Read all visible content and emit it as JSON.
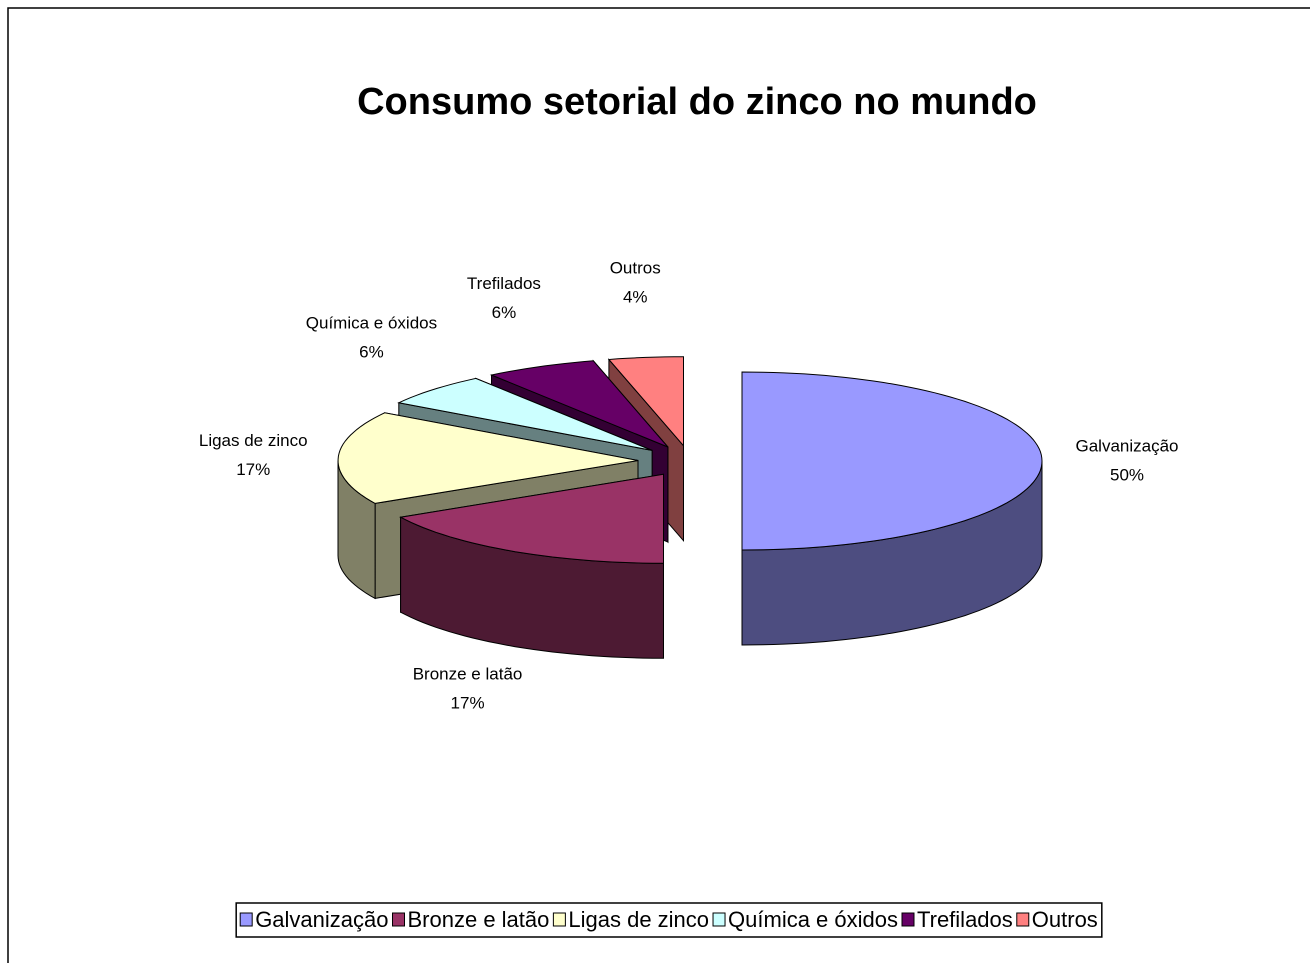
{
  "chart_data": {
    "type": "pie",
    "title": "Consumo setorial do zinco no mundo",
    "categories": [
      "Galvanização",
      "Bronze e latão",
      "Ligas de zinco",
      "Química e óxidos",
      "Trefilados",
      "Outros"
    ],
    "values": [
      50,
      17,
      17,
      6,
      6,
      4
    ],
    "value_labels": [
      "50%",
      "17%",
      "17%",
      "6%",
      "6%",
      "4%"
    ],
    "colors": [
      "#9999ff",
      "#993366",
      "#ffffcc",
      "#ccffff",
      "#660066",
      "#ff8080"
    ],
    "legend": "bottom"
  }
}
